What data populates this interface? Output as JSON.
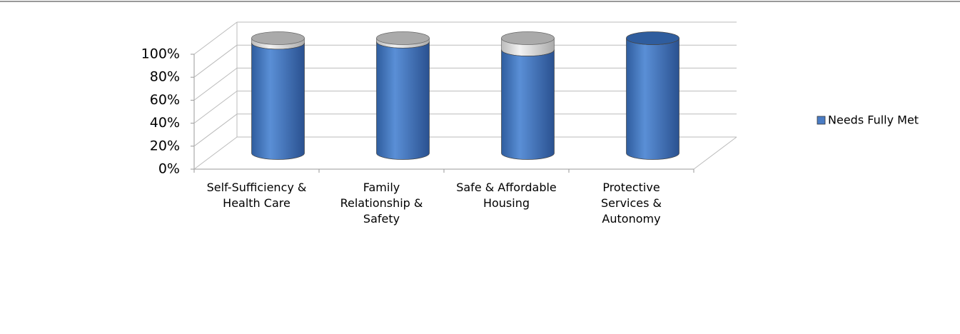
{
  "chart_data": {
    "type": "bar3d",
    "categories": [
      "Self-Sufficiency &\nHealth Care",
      "Family\nRelationship &\nSafety",
      "Safe & Affordable\nHousing",
      "Protective\nServices &\nAutonomy"
    ],
    "series": [
      {
        "name": "Needs Fully Met",
        "color": "#4a7cc4",
        "values": [
          96,
          97,
          90,
          100
        ]
      }
    ],
    "ylim": [
      0,
      100
    ],
    "yticks": [
      {
        "value": 0,
        "label": "0%"
      },
      {
        "value": 20,
        "label": "20%"
      },
      {
        "value": 40,
        "label": "40%"
      },
      {
        "value": 60,
        "label": "60%"
      },
      {
        "value": 80,
        "label": "80%"
      },
      {
        "value": 100,
        "label": "100%"
      }
    ],
    "grid": true,
    "legend": "right"
  }
}
